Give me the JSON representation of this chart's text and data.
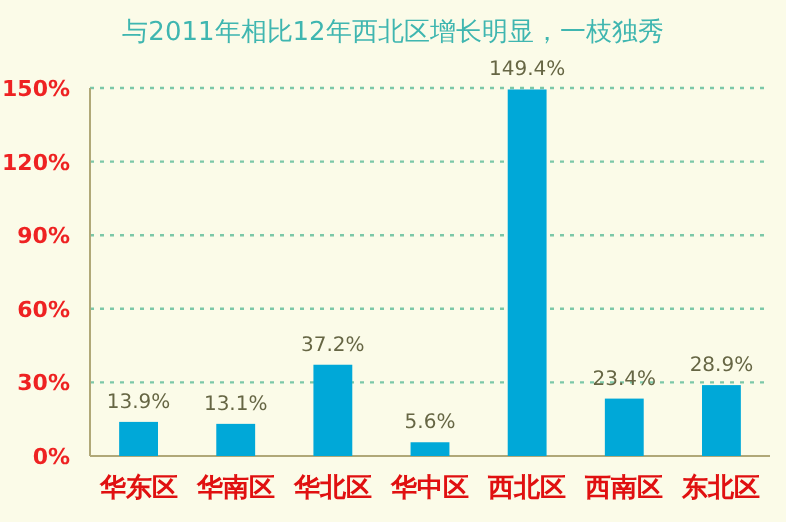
{
  "chart_data": {
    "type": "bar",
    "title": "与2011年相比12年西北区增长明显，一枝独秀",
    "categories": [
      "华东区",
      "华南区",
      "华北区",
      "华中区",
      "西北区",
      "西南区",
      "东北区"
    ],
    "values": [
      13.9,
      13.1,
      37.2,
      5.6,
      149.4,
      23.4,
      28.9
    ],
    "color": "#00a8d8",
    "ylim": [
      0,
      150
    ],
    "yticks": [
      {
        "value": 0,
        "label": "0%"
      },
      {
        "value": 30,
        "label": "30%"
      },
      {
        "value": 60,
        "label": "60%"
      },
      {
        "value": 90,
        "label": "90%"
      },
      {
        "value": 120,
        "label": "120%"
      },
      {
        "value": 150,
        "label": "150%"
      }
    ],
    "value_labels": [
      "13.9%",
      "13.1%",
      "37.2%",
      "5.6%",
      "149.4%",
      "23.4%",
      "28.9%"
    ],
    "grid": "y"
  }
}
